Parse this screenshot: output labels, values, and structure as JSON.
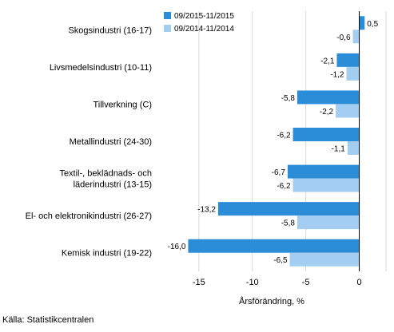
{
  "chart_data": {
    "type": "bar",
    "orientation": "horizontal",
    "categories": [
      [
        "Skogsindustri (16-17)"
      ],
      [
        "Livsmedelsindustri (10-11)"
      ],
      [
        "Tillverkning (C)"
      ],
      [
        "Metallindustri (24-30)"
      ],
      [
        "Textil-, beklädnads- och",
        "läderindustri (13-15)"
      ],
      [
        "El- och elektronikindustri (26-27)"
      ],
      [
        "Kemisk industri (19-22)"
      ]
    ],
    "series": [
      {
        "name": "09/2015-11/2015",
        "color": "#2b8cd8",
        "values": [
          0.5,
          -2.1,
          -5.8,
          -6.2,
          -6.7,
          -13.2,
          -16.0
        ],
        "labels": [
          "0,5",
          "-2,1",
          "-5,8",
          "-6,2",
          "-6,7",
          "-13,2",
          "-16,0"
        ]
      },
      {
        "name": "09/2014-11/2014",
        "color": "#a3cef1",
        "values": [
          -0.6,
          -1.2,
          -2.2,
          -1.1,
          -6.2,
          -5.8,
          -6.5
        ],
        "labels": [
          "-0,6",
          "-1,2",
          "-2,2",
          "-1,1",
          "-6,2",
          "-5,8",
          "-6,5"
        ]
      }
    ],
    "xlim": [
      -18.5,
      2.5
    ],
    "xticks": [
      -15,
      -10,
      -5,
      0
    ],
    "xtick_labels": [
      "-15",
      "-10",
      "-5",
      "0"
    ],
    "xlabel": "Årsförändring, %",
    "grid": true,
    "legend": "top"
  },
  "source": "Källa: Statistikcentralen"
}
